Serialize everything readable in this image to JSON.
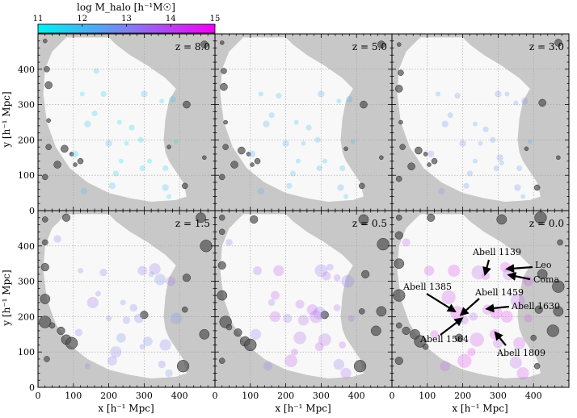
{
  "colorbar": {
    "label": "log M_halo [h⁻¹M☉]",
    "ticks": [
      11,
      12,
      13,
      14,
      15
    ],
    "range": [
      11,
      15
    ],
    "color_low": "#00f0f0",
    "color_high": "#f000f0"
  },
  "colors": {
    "panel_background": "#c8c8c8",
    "survey_footprint": "#f8f8f8",
    "outside_halo": "#505050"
  },
  "chart_data": {
    "type": "scatter",
    "title": "",
    "xlabel": "x [h⁻¹ Mpc]",
    "ylabel": "y [h⁻¹ Mpc]",
    "xlim": [
      0,
      500
    ],
    "ylim": [
      0,
      500
    ],
    "xticks": [
      0,
      100,
      200,
      300,
      400
    ],
    "yticks": [
      0,
      100,
      200,
      300,
      400
    ],
    "grid": true,
    "panels": [
      {
        "label": "z = 8.0",
        "inside_halos": [
          [
            125,
            330
          ],
          [
            185,
            330
          ],
          [
            300,
            330
          ],
          [
            350,
            310
          ],
          [
            160,
            275
          ],
          [
            105,
            160
          ],
          [
            315,
            140
          ],
          [
            360,
            120
          ],
          [
            200,
            190
          ],
          [
            250,
            190
          ],
          [
            290,
            200
          ],
          [
            140,
            245
          ],
          [
            230,
            250
          ],
          [
            265,
            235
          ],
          [
            380,
            315
          ],
          [
            390,
            195
          ],
          [
            295,
            120
          ],
          [
            360,
            65
          ],
          [
            235,
            140
          ],
          [
            220,
            105
          ],
          [
            130,
            55
          ],
          [
            370,
            40
          ],
          [
            165,
            395
          ],
          [
            210,
            70
          ]
        ],
        "outside_halos": [
          [
            20,
            480
          ],
          [
            25,
            400
          ],
          [
            30,
            355
          ],
          [
            30,
            255
          ],
          [
            30,
            180
          ],
          [
            75,
            175
          ],
          [
            105,
            130
          ],
          [
            120,
            140
          ],
          [
            55,
            130
          ],
          [
            95,
            160
          ],
          [
            20,
            95
          ],
          [
            420,
            300
          ],
          [
            470,
            150
          ],
          [
            415,
            70
          ],
          [
            470,
            470
          ],
          [
            370,
            180
          ]
        ]
      },
      {
        "label": "z = 5.0",
        "inside_halos": [
          [
            130,
            330
          ],
          [
            180,
            325
          ],
          [
            300,
            330
          ],
          [
            350,
            310
          ],
          [
            160,
            270
          ],
          [
            105,
            160
          ],
          [
            310,
            140
          ],
          [
            360,
            120
          ],
          [
            200,
            190
          ],
          [
            250,
            190
          ],
          [
            290,
            200
          ],
          [
            145,
            245
          ],
          [
            230,
            250
          ],
          [
            265,
            235
          ],
          [
            380,
            315
          ],
          [
            390,
            195
          ],
          [
            295,
            120
          ],
          [
            355,
            65
          ],
          [
            235,
            140
          ],
          [
            220,
            105
          ],
          [
            130,
            55
          ],
          [
            370,
            40
          ],
          [
            210,
            70
          ]
        ],
        "outside_halos": [
          [
            20,
            475
          ],
          [
            25,
            395
          ],
          [
            25,
            350
          ],
          [
            30,
            250
          ],
          [
            30,
            180
          ],
          [
            75,
            170
          ],
          [
            105,
            130
          ],
          [
            120,
            140
          ],
          [
            55,
            130
          ],
          [
            95,
            160
          ],
          [
            20,
            95
          ],
          [
            420,
            300
          ],
          [
            470,
            150
          ],
          [
            415,
            70
          ],
          [
            470,
            470
          ],
          [
            370,
            175
          ]
        ]
      },
      {
        "label": "z = 3.0",
        "inside_halos": [
          [
            130,
            330
          ],
          [
            185,
            325
          ],
          [
            300,
            330
          ],
          [
            350,
            305
          ],
          [
            165,
            270
          ],
          [
            110,
            160
          ],
          [
            310,
            135
          ],
          [
            360,
            120
          ],
          [
            200,
            190
          ],
          [
            250,
            190
          ],
          [
            285,
            200
          ],
          [
            150,
            245
          ],
          [
            235,
            245
          ],
          [
            265,
            230
          ],
          [
            375,
            310
          ],
          [
            390,
            195
          ],
          [
            295,
            120
          ],
          [
            355,
            65
          ],
          [
            235,
            140
          ],
          [
            220,
            105
          ],
          [
            140,
            55
          ],
          [
            370,
            40
          ],
          [
            210,
            70
          ],
          [
            305,
            150
          ],
          [
            325,
            330
          ]
        ],
        "outside_halos": [
          [
            20,
            470
          ],
          [
            25,
            390
          ],
          [
            20,
            345
          ],
          [
            25,
            250
          ],
          [
            30,
            180
          ],
          [
            75,
            170
          ],
          [
            105,
            130
          ],
          [
            120,
            140
          ],
          [
            55,
            125
          ],
          [
            95,
            160
          ],
          [
            20,
            90
          ],
          [
            425,
            305
          ],
          [
            470,
            150
          ],
          [
            410,
            65
          ],
          [
            470,
            475
          ],
          [
            380,
            175
          ]
        ]
      },
      {
        "label": "z = 1.5",
        "inside_halos": [
          [
            120,
            330
          ],
          [
            185,
            325
          ],
          [
            295,
            330
          ],
          [
            345,
            305
          ],
          [
            170,
            265
          ],
          [
            115,
            155
          ],
          [
            310,
            130
          ],
          [
            360,
            120
          ],
          [
            200,
            195
          ],
          [
            250,
            190
          ],
          [
            285,
            195
          ],
          [
            155,
            240
          ],
          [
            240,
            240
          ],
          [
            270,
            225
          ],
          [
            375,
            300
          ],
          [
            390,
            195
          ],
          [
            295,
            115
          ],
          [
            350,
            65
          ],
          [
            235,
            140
          ],
          [
            220,
            100
          ],
          [
            140,
            60
          ],
          [
            370,
            40
          ],
          [
            210,
            75
          ],
          [
            330,
            335
          ],
          [
            320,
            320
          ],
          [
            55,
            420
          ]
        ],
        "outside_halos": [
          [
            20,
            475
          ],
          [
            80,
            480
          ],
          [
            460,
            480
          ],
          [
            475,
            400
          ],
          [
            20,
            410
          ],
          [
            20,
            340
          ],
          [
            20,
            250
          ],
          [
            20,
            185
          ],
          [
            40,
            175
          ],
          [
            65,
            160
          ],
          [
            80,
            135
          ],
          [
            95,
            125
          ],
          [
            25,
            80
          ],
          [
            420,
            310
          ],
          [
            470,
            150
          ],
          [
            410,
            60
          ],
          [
            415,
            220
          ],
          [
            300,
            205
          ]
        ]
      },
      {
        "label": "z = 0.5",
        "inside_halos": [
          [
            40,
            410
          ],
          [
            120,
            330
          ],
          [
            180,
            330
          ],
          [
            300,
            330
          ],
          [
            345,
            310
          ],
          [
            170,
            260
          ],
          [
            115,
            150
          ],
          [
            310,
            135
          ],
          [
            360,
            120
          ],
          [
            205,
            195
          ],
          [
            250,
            190
          ],
          [
            285,
            200
          ],
          [
            160,
            240
          ],
          [
            240,
            235
          ],
          [
            275,
            220
          ],
          [
            375,
            300
          ],
          [
            385,
            195
          ],
          [
            295,
            115
          ],
          [
            350,
            65
          ],
          [
            240,
            140
          ],
          [
            225,
            100
          ],
          [
            150,
            60
          ],
          [
            370,
            40
          ],
          [
            215,
            75
          ],
          [
            325,
            340
          ],
          [
            315,
            315
          ],
          [
            170,
            200
          ],
          [
            295,
            210
          ],
          [
            345,
            225
          ]
        ],
        "outside_halos": [
          [
            20,
            480
          ],
          [
            110,
            475
          ],
          [
            420,
            475
          ],
          [
            475,
            405
          ],
          [
            20,
            440
          ],
          [
            20,
            345
          ],
          [
            20,
            260
          ],
          [
            30,
            185
          ],
          [
            40,
            170
          ],
          [
            65,
            155
          ],
          [
            85,
            130
          ],
          [
            100,
            120
          ],
          [
            20,
            75
          ],
          [
            425,
            320
          ],
          [
            455,
            160
          ],
          [
            410,
            60
          ],
          [
            415,
            215
          ],
          [
            310,
            205
          ],
          [
            470,
            215
          ]
        ]
      },
      {
        "label": "z = 0.0",
        "inside_halos": [
          [
            40,
            410
          ],
          [
            105,
            330
          ],
          [
            175,
            330
          ],
          [
            245,
            325
          ],
          [
            265,
            315
          ],
          [
            320,
            340
          ],
          [
            330,
            320
          ],
          [
            160,
            255
          ],
          [
            120,
            150
          ],
          [
            300,
            125
          ],
          [
            360,
            125
          ],
          [
            185,
            210
          ],
          [
            230,
            200
          ],
          [
            270,
            220
          ],
          [
            295,
            210
          ],
          [
            355,
            245
          ],
          [
            385,
            195
          ],
          [
            290,
            150
          ],
          [
            350,
            70
          ],
          [
            240,
            135
          ],
          [
            225,
            100
          ],
          [
            150,
            60
          ],
          [
            370,
            40
          ],
          [
            205,
            75
          ],
          [
            205,
            190
          ],
          [
            385,
            300
          ],
          [
            325,
            200
          ]
        ],
        "outside_halos": [
          [
            20,
            480
          ],
          [
            110,
            480
          ],
          [
            310,
            475
          ],
          [
            420,
            480
          ],
          [
            475,
            410
          ],
          [
            20,
            430
          ],
          [
            20,
            350
          ],
          [
            20,
            260
          ],
          [
            20,
            175
          ],
          [
            40,
            160
          ],
          [
            65,
            150
          ],
          [
            80,
            130
          ],
          [
            95,
            115
          ],
          [
            20,
            75
          ],
          [
            425,
            320
          ],
          [
            455,
            160
          ],
          [
            410,
            60
          ],
          [
            415,
            220
          ],
          [
            470,
            215
          ],
          [
            470,
            285
          ],
          [
            400,
            140
          ],
          [
            190,
            140
          ]
        ],
        "annotations": [
          {
            "text": "Abell 1139",
            "point": [
              263,
              320
            ]
          },
          {
            "text": "Leo",
            "point": [
              325,
              335
            ]
          },
          {
            "text": "Coma",
            "point": [
              330,
              318
            ]
          },
          {
            "text": "Abell 1385",
            "point": [
              178,
              215
            ]
          },
          {
            "text": "Abell 1459",
            "point": [
              195,
              205
            ]
          },
          {
            "text": "Abell 1630",
            "point": [
              268,
              222
            ]
          },
          {
            "text": "Abell 1564",
            "point": [
              198,
              195
            ]
          },
          {
            "text": "Abell 1809",
            "point": [
              292,
              155
            ]
          }
        ]
      }
    ]
  }
}
